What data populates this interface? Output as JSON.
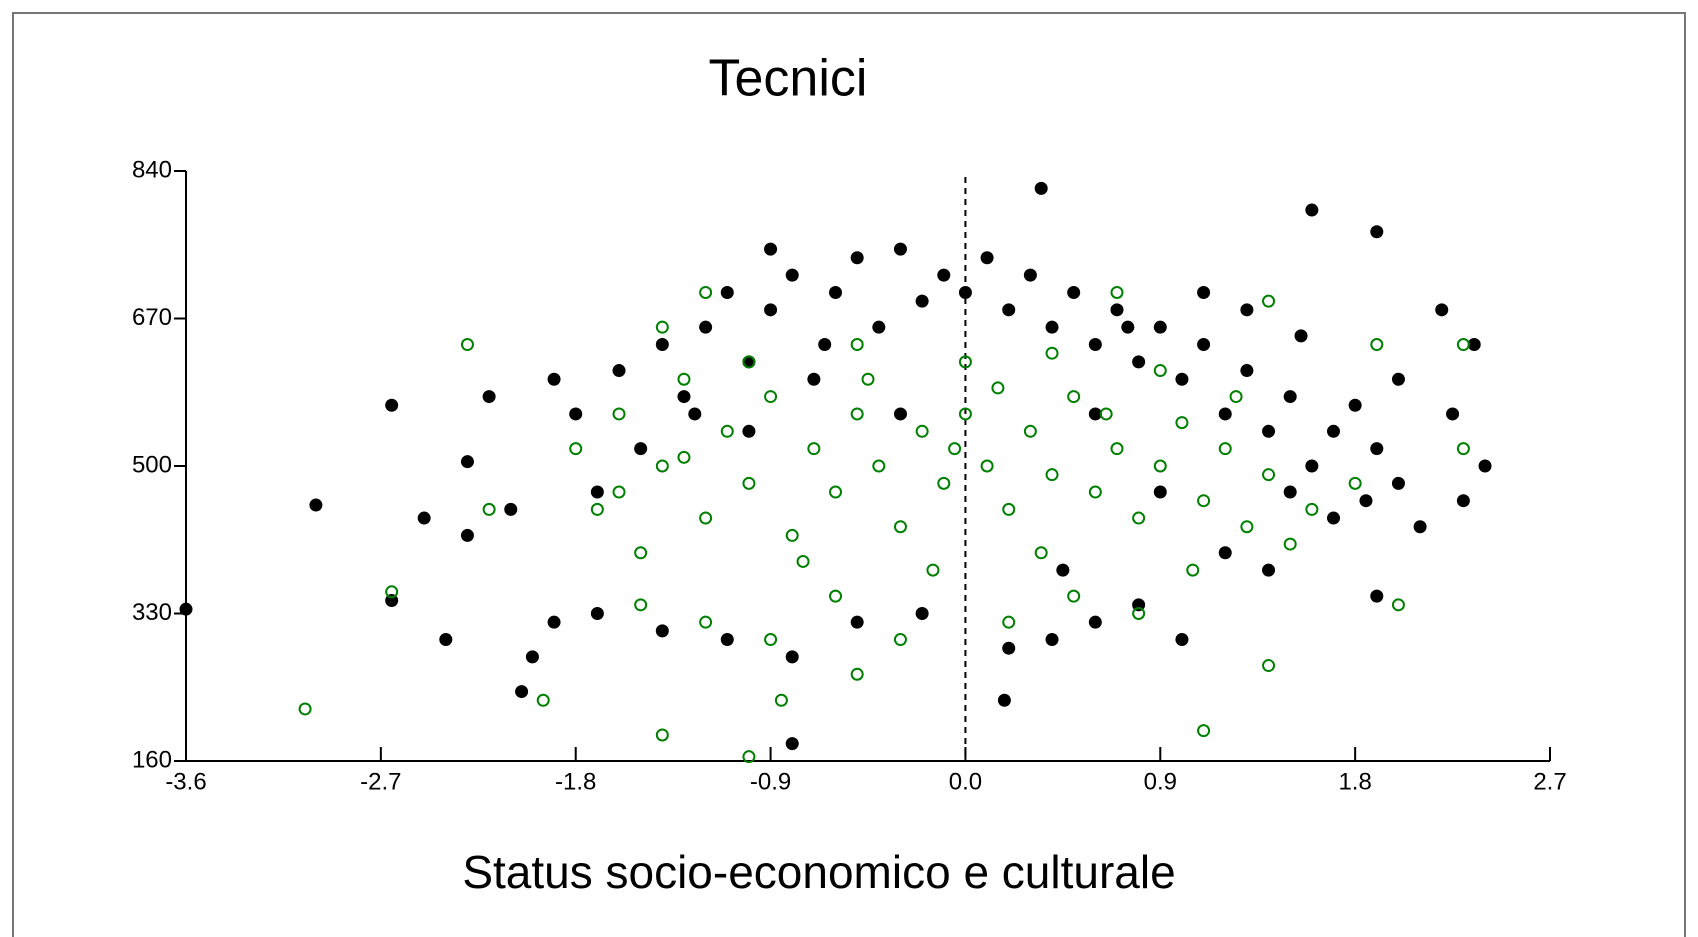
{
  "chart_data": {
    "type": "scatter",
    "title": "Tecnici",
    "xlabel": "Status socio-economico e culturale",
    "xlim": [
      -3.6,
      2.7
    ],
    "xticks": [
      -3.6,
      -2.7,
      -1.8,
      -0.9,
      {
        "value": 0,
        "label": "0.0"
      },
      0.9,
      1.8,
      2.7
    ],
    "ylim": [
      160,
      840
    ],
    "yticks": [
      160,
      330,
      500,
      670,
      840
    ],
    "vline": 0,
    "grid": false,
    "series": [
      {
        "color": "#000000",
        "marker": "filled",
        "x": [
          -3.6,
          -3.0,
          -2.65,
          -2.65,
          -2.5,
          -2.4,
          -2.3,
          -2.3,
          -2.2,
          -2.1,
          -2.05,
          -2.0,
          -0.8,
          0.35,
          0.18,
          1.6,
          1.9,
          2.2,
          2.4,
          2.35,
          2.3,
          1.9,
          -0.9,
          -0.3,
          -1.9,
          -1.8,
          -1.7,
          -1.6,
          -1.5,
          -1.4,
          -1.3,
          -1.2,
          -1.1,
          -1.0,
          -0.9,
          -0.8,
          -0.7,
          -0.6,
          -0.5,
          -0.4,
          -0.2,
          -0.1,
          0.0,
          0.1,
          0.2,
          0.3,
          0.4,
          0.5,
          0.6,
          0.7,
          0.8,
          0.9,
          1.0,
          1.1,
          1.2,
          1.3,
          1.4,
          1.5,
          1.6,
          1.7,
          1.8,
          1.9,
          2.0,
          2.1,
          1.2,
          1.4,
          1.0,
          0.8,
          0.6,
          0.4,
          0.2,
          -0.2,
          -0.5,
          -0.8,
          -1.1,
          -1.4,
          -1.7,
          -1.9,
          1.7,
          1.5,
          0.9,
          0.6,
          -0.3,
          -1.0,
          1.3,
          1.1,
          0.75,
          -0.65,
          -1.25,
          1.85,
          2.0,
          2.25,
          1.55,
          0.45
        ],
        "values": [
          335,
          455,
          570,
          345,
          440,
          300,
          420,
          505,
          580,
          450,
          240,
          280,
          180,
          820,
          230,
          795,
          770,
          680,
          500,
          640,
          460,
          350,
          750,
          750,
          600,
          560,
          470,
          610,
          520,
          640,
          580,
          660,
          700,
          620,
          680,
          720,
          600,
          700,
          740,
          660,
          690,
          720,
          700,
          740,
          680,
          720,
          660,
          700,
          640,
          680,
          620,
          660,
          600,
          640,
          560,
          610,
          540,
          580,
          500,
          540,
          570,
          520,
          600,
          430,
          400,
          380,
          300,
          340,
          320,
          300,
          290,
          330,
          320,
          280,
          300,
          310,
          330,
          320,
          440,
          470,
          470,
          560,
          560,
          540,
          680,
          700,
          660,
          640,
          560,
          460,
          480,
          560,
          650,
          380
        ]
      },
      {
        "color": "#008000",
        "marker": "open",
        "x": [
          -3.05,
          -2.65,
          -2.3,
          -2.2,
          -1.95,
          -1.4,
          -1.0,
          -0.85,
          -0.5,
          1.1,
          1.4,
          2.0,
          2.3,
          2.3,
          1.9,
          -1.4,
          -1.2,
          0.7,
          1.4,
          -1.8,
          -1.7,
          -1.6,
          -1.5,
          -1.4,
          -1.3,
          -1.2,
          -1.1,
          -1.0,
          -0.9,
          -0.8,
          -0.7,
          -0.6,
          -0.5,
          -0.4,
          -0.3,
          -0.2,
          -0.1,
          0.0,
          0.1,
          0.2,
          0.3,
          0.4,
          0.5,
          0.6,
          0.7,
          0.8,
          0.9,
          1.0,
          1.1,
          1.2,
          1.3,
          1.4,
          1.5,
          1.6,
          1.8,
          -1.5,
          -1.2,
          -0.9,
          -0.6,
          -0.3,
          0.2,
          0.5,
          0.8,
          -1.0,
          -0.5,
          0.0,
          0.4,
          0.9,
          -1.6,
          -0.75,
          -0.15,
          0.35,
          1.05,
          -1.3,
          -0.45,
          0.15,
          0.65,
          1.25,
          -0.05
        ],
        "values": [
          220,
          355,
          640,
          450,
          230,
          190,
          165,
          230,
          260,
          195,
          270,
          340,
          640,
          520,
          640,
          660,
          700,
          700,
          690,
          520,
          450,
          560,
          400,
          500,
          600,
          440,
          540,
          480,
          580,
          420,
          520,
          470,
          560,
          500,
          430,
          540,
          480,
          560,
          500,
          450,
          540,
          490,
          580,
          470,
          520,
          440,
          500,
          550,
          460,
          520,
          430,
          490,
          410,
          450,
          480,
          340,
          320,
          300,
          350,
          300,
          320,
          350,
          330,
          620,
          640,
          620,
          630,
          610,
          470,
          390,
          380,
          400,
          380,
          510,
          600,
          590,
          560,
          580,
          520
        ]
      }
    ]
  }
}
